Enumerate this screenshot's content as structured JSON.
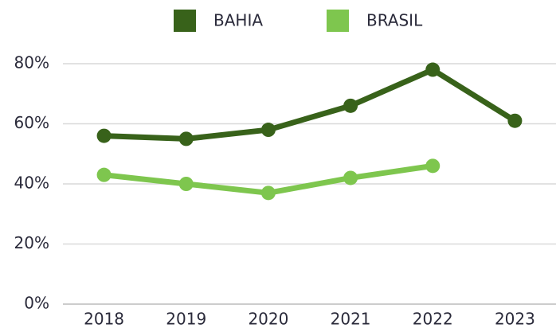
{
  "chart_data": {
    "type": "line",
    "categories": [
      "2018",
      "2019",
      "2020",
      "2021",
      "2022",
      "2023"
    ],
    "series": [
      {
        "name": "BAHIA",
        "color": "#38621a",
        "values": [
          56,
          55,
          58,
          66,
          78,
          61
        ]
      },
      {
        "name": "BRASIL",
        "color": "#7ec64e",
        "values": [
          43,
          40,
          37,
          42,
          46,
          null
        ]
      }
    ],
    "ylim": [
      0,
      80
    ],
    "yticks": [
      {
        "value": 0,
        "label": "0%"
      },
      {
        "value": 20,
        "label": "20%"
      },
      {
        "value": 40,
        "label": "40%"
      },
      {
        "value": 60,
        "label": "60%"
      },
      {
        "value": 80,
        "label": "80%"
      }
    ],
    "grid": true,
    "legend": "top"
  }
}
